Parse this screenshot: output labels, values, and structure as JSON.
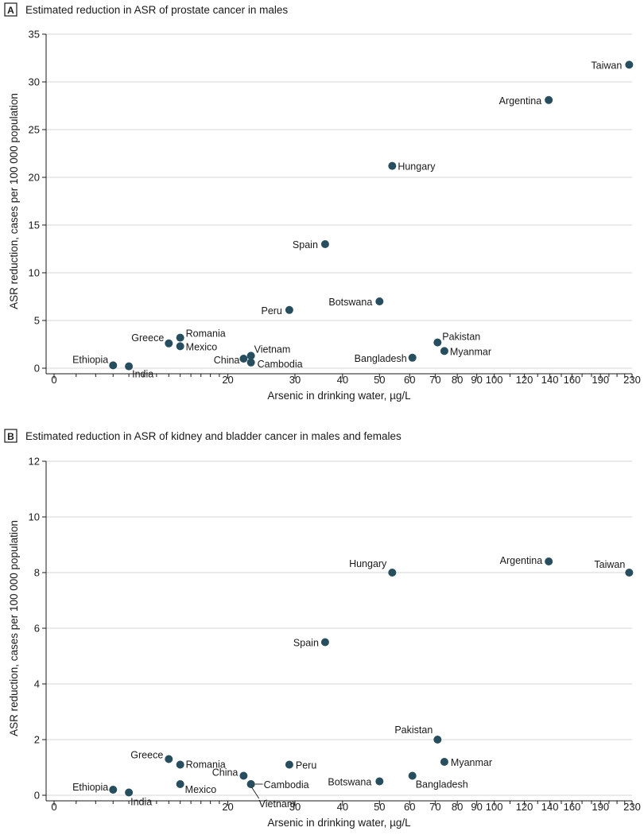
{
  "chart_data": [
    {
      "panel": "A",
      "type": "scatter",
      "title": "Estimated reduction in ASR of prostate cancer in males",
      "xlabel": "Arsenic in drinking water, µg/L",
      "ylabel": "ASR reduction, cases per 100 000 population",
      "x_scale": "log",
      "xlim": [
        7,
        230
      ],
      "ylim": [
        0,
        35
      ],
      "y_ticks": [
        0,
        5,
        10,
        15,
        20,
        25,
        30,
        35
      ],
      "x_tick_labels": [
        "0",
        "20",
        "30",
        "40",
        "50",
        "60",
        "70",
        "80",
        "90",
        "100",
        "120",
        "140",
        "160",
        "190",
        "230"
      ],
      "grid": "horizontal",
      "points": [
        {
          "label": "Ethiopia",
          "x": 10,
          "y": 0.3
        },
        {
          "label": "India",
          "x": 11,
          "y": 0.2
        },
        {
          "label": "Greece",
          "x": 14,
          "y": 2.6
        },
        {
          "label": "Romania",
          "x": 15,
          "y": 3.2
        },
        {
          "label": "Mexico",
          "x": 15,
          "y": 2.3
        },
        {
          "label": "China",
          "x": 22,
          "y": 1.0
        },
        {
          "label": "Vietnam",
          "x": 23,
          "y": 1.3
        },
        {
          "label": "Cambodia",
          "x": 23,
          "y": 0.6
        },
        {
          "label": "Peru",
          "x": 29,
          "y": 6.1
        },
        {
          "label": "Spain",
          "x": 36,
          "y": 13.0
        },
        {
          "label": "Botswana",
          "x": 50,
          "y": 7.0
        },
        {
          "label": "Hungary",
          "x": 54,
          "y": 21.2
        },
        {
          "label": "Bangladesh",
          "x": 61,
          "y": 1.1
        },
        {
          "label": "Pakistan",
          "x": 71,
          "y": 2.7
        },
        {
          "label": "Myanmar",
          "x": 74,
          "y": 1.8
        },
        {
          "label": "Argentina",
          "x": 139,
          "y": 28.1
        },
        {
          "label": "Taiwan",
          "x": 226,
          "y": 31.8
        }
      ]
    },
    {
      "panel": "B",
      "type": "scatter",
      "title": "Estimated reduction in ASR of kidney and bladder cancer in males and females",
      "xlabel": "Arsenic in drinking water, µg/L",
      "ylabel": "ASR reduction, cases per 100 000 population",
      "x_scale": "log",
      "xlim": [
        7,
        230
      ],
      "ylim": [
        0,
        12
      ],
      "y_ticks": [
        0,
        2,
        4,
        6,
        8,
        10,
        12
      ],
      "x_tick_labels": [
        "0",
        "20",
        "30",
        "40",
        "50",
        "60",
        "70",
        "80",
        "90",
        "100",
        "120",
        "140",
        "160",
        "190",
        "230"
      ],
      "grid": "horizontal",
      "points": [
        {
          "label": "Ethiopia",
          "x": 10,
          "y": 0.2
        },
        {
          "label": "India",
          "x": 11,
          "y": 0.1
        },
        {
          "label": "Greece",
          "x": 14,
          "y": 1.3
        },
        {
          "label": "Romania",
          "x": 15,
          "y": 1.1
        },
        {
          "label": "Mexico",
          "x": 15,
          "y": 0.4
        },
        {
          "label": "China",
          "x": 22,
          "y": 0.7
        },
        {
          "label": "Cambodia",
          "x": 23,
          "y": 0.4
        },
        {
          "label": "Vietnam",
          "x": 23,
          "y": 0.4
        },
        {
          "label": "Peru",
          "x": 29,
          "y": 1.1
        },
        {
          "label": "Spain",
          "x": 36,
          "y": 5.5
        },
        {
          "label": "Botswana",
          "x": 50,
          "y": 0.5
        },
        {
          "label": "Hungary",
          "x": 54,
          "y": 8.0
        },
        {
          "label": "Bangladesh",
          "x": 61,
          "y": 0.7
        },
        {
          "label": "Pakistan",
          "x": 71,
          "y": 2.0
        },
        {
          "label": "Myanmar",
          "x": 74,
          "y": 1.2
        },
        {
          "label": "Argentina",
          "x": 139,
          "y": 8.4
        },
        {
          "label": "Taiwan",
          "x": 226,
          "y": 8.0
        }
      ]
    }
  ]
}
